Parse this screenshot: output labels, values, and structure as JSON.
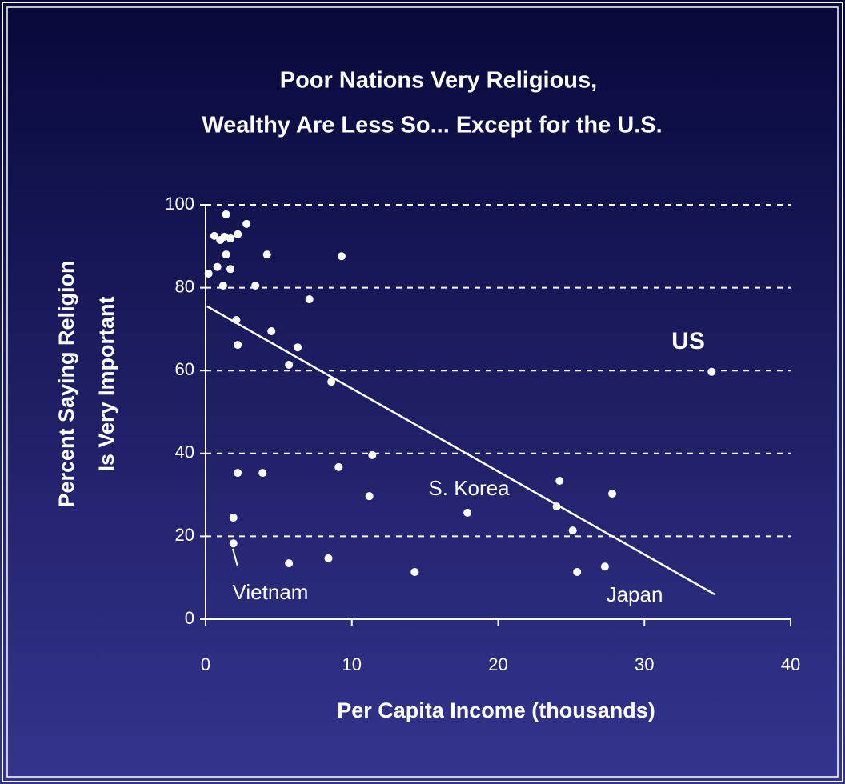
{
  "chart_data": {
    "type": "scatter",
    "title": [
      "Poor Nations Very Religious,",
      "Wealthy Are Less So... Except for the U.S."
    ],
    "xlabel": "Per Capita Income (thousands)",
    "ylabel": [
      "Percent Saying Religion",
      "Is Very Important"
    ],
    "x": [
      0.2,
      0.6,
      0.8,
      1.0,
      1.3,
      1.4,
      1.4,
      1.2,
      1.7,
      1.7,
      2.2,
      2.8,
      3.4,
      4.2,
      7.1,
      9.3,
      2.1,
      2.2,
      4.5,
      6.3,
      5.7,
      8.6,
      2.2,
      3.9,
      9.1,
      11.4,
      11.2,
      17.9,
      1.9,
      1.9,
      5.7,
      8.4,
      14.3,
      24.2,
      27.8,
      24.0,
      25.1,
      25.4,
      27.3,
      34.6
    ],
    "values": [
      83.4,
      92.5,
      85,
      91.5,
      92.3,
      97.7,
      88,
      80.5,
      91.9,
      84.5,
      92.9,
      95.4,
      80.5,
      88,
      77.2,
      87.6,
      72.2,
      66.2,
      69.5,
      65.6,
      61.4,
      57.3,
      35.3,
      35.3,
      36.7,
      39.6,
      29.7,
      25.7,
      24.5,
      18.3,
      13.5,
      14.7,
      11.4,
      33.4,
      30.3,
      27.2,
      21.4,
      11.4,
      12.7,
      59.7
    ],
    "color": "#ffffff",
    "trend_line": {
      "x": [
        0.1,
        34.8
      ],
      "y": [
        75.5,
        6.0
      ]
    },
    "annotations": [
      "US",
      "S. Korea",
      "Vietnam",
      "Japan"
    ],
    "xlim": [
      0,
      40
    ],
    "ylim": [
      0,
      100
    ],
    "xticks": [
      0,
      10,
      20,
      30,
      40
    ],
    "yticks": [
      0,
      20,
      40,
      60,
      80,
      100
    ],
    "grid": true
  }
}
